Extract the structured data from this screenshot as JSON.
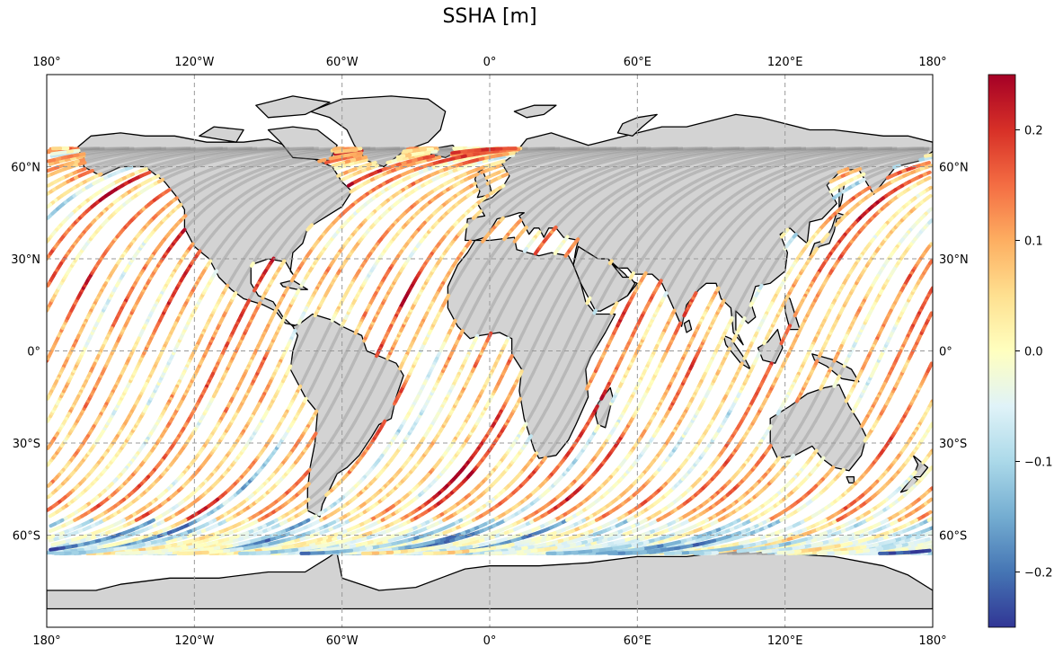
{
  "title": "SSHA [m]",
  "chart_data": {
    "type": "map",
    "projection": "PlateCarree",
    "lon_range": [
      -180,
      180
    ],
    "lat_range": [
      -90,
      90
    ],
    "lon_ticks": [
      {
        "value": -180,
        "label": "180°"
      },
      {
        "value": -120,
        "label": "120°W"
      },
      {
        "value": -60,
        "label": "60°W"
      },
      {
        "value": 0,
        "label": "0°"
      },
      {
        "value": 60,
        "label": "60°E"
      },
      {
        "value": 120,
        "label": "120°E"
      },
      {
        "value": 180,
        "label": "180°"
      }
    ],
    "lat_ticks": [
      {
        "value": 60,
        "label": "60°N"
      },
      {
        "value": 30,
        "label": "30°N"
      },
      {
        "value": 0,
        "label": "0°"
      },
      {
        "value": -30,
        "label": "30°S"
      },
      {
        "value": -60,
        "label": "60°S"
      }
    ],
    "gridlines": true,
    "land_color": "#d3d3d3",
    "colorbar": {
      "vmin": -0.25,
      "vmax": 0.25,
      "cmap": "RdYlBu_r",
      "ticks": [
        {
          "value": 0.2,
          "label": "0.2"
        },
        {
          "value": 0.1,
          "label": "0.1"
        },
        {
          "value": 0.0,
          "label": "0.0"
        },
        {
          "value": -0.1,
          "label": "−0.1"
        },
        {
          "value": -0.2,
          "label": "−0.2"
        }
      ]
    },
    "tracks": {
      "ascending_start_lons": [
        -178,
        -153,
        -128,
        -103,
        -78,
        -53,
        -28,
        -3,
        22,
        47,
        72,
        97,
        122,
        147,
        172,
        -165,
        -140,
        -115,
        -90,
        -65,
        -40,
        -15,
        10,
        35,
        60,
        85,
        110,
        135,
        160
      ],
      "descending_start_lons": [
        -170,
        -145,
        -120,
        -95,
        -70,
        -45,
        -20,
        5,
        30,
        55,
        80,
        105,
        130,
        155,
        -158,
        -133,
        -108,
        -83,
        -58,
        -33,
        -8,
        17,
        42,
        67,
        92,
        117,
        142,
        167
      ],
      "inclination_deg": 66,
      "mean_ssha_m": 0.07
    }
  }
}
